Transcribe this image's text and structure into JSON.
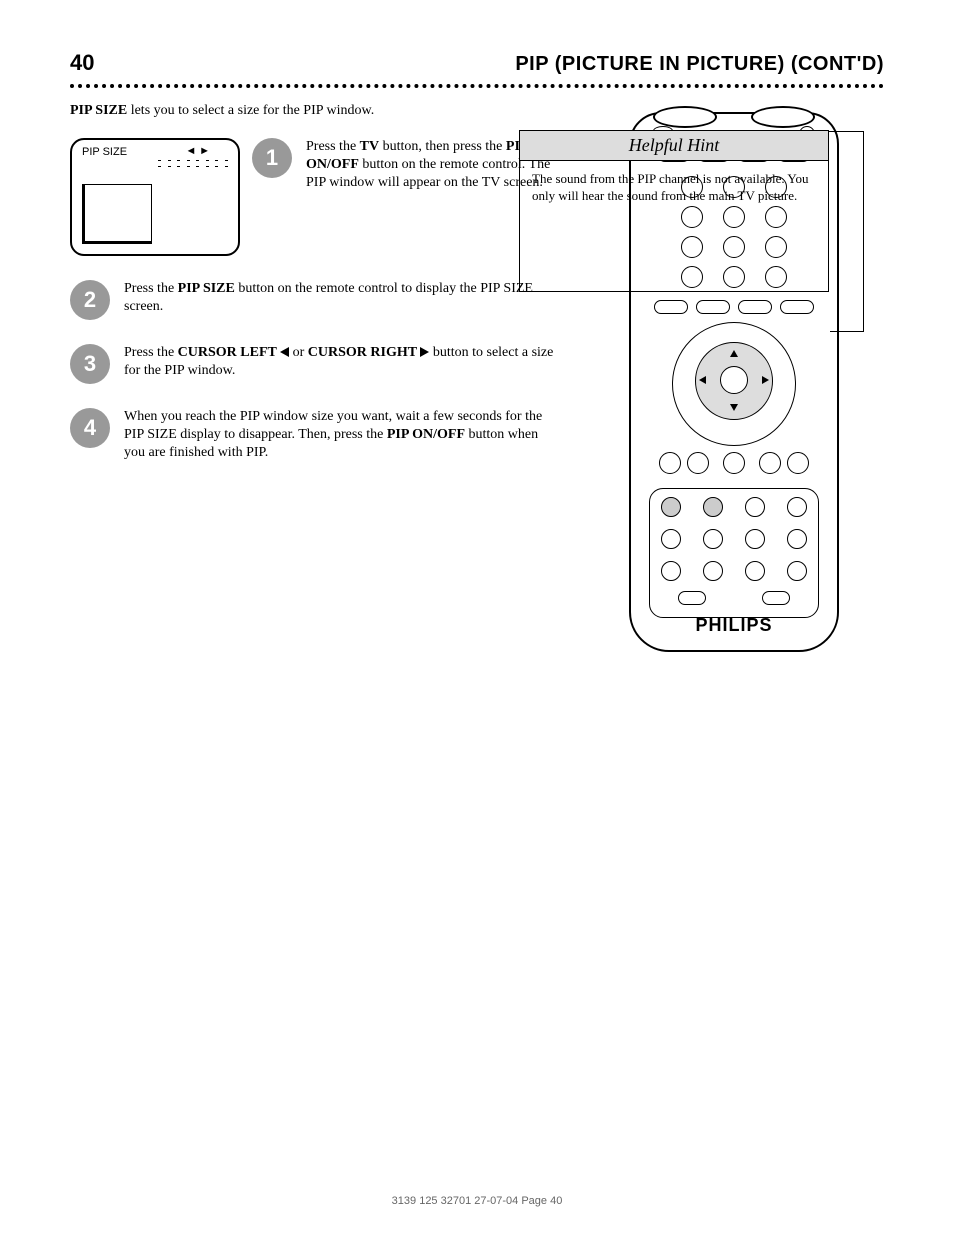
{
  "page_number": "40",
  "page_title": "PIP (PICTURE IN PICTURE) (CONT'D)",
  "intro_html": "<b>PIP SIZE</b> lets you to select a size for the PIP window.",
  "steps": [
    {
      "num": "1",
      "html": "Press the <b>TV</b> button, then press the <b>PIP ON/OFF</b> button on the remote control. The PIP window will appear on the TV screen."
    },
    {
      "num": "2",
      "html": "Press the <b>PIP SIZE</b> button on the remote control to display the PIP SIZE screen."
    },
    {
      "num": "3",
      "html": "Press the <b>CURSOR LEFT <span class=\"inline-triangle tri-left\"></span></b> or <b>CURSOR RIGHT <span class=\"inline-triangle tri-right\"></span></b> button to select a size for the PIP window."
    },
    {
      "num": "4",
      "html": "When you reach the PIP window size you want, wait a few seconds for the PIP SIZE display to disappear. Then, press the <b>PIP ON/OFF</b> button when you are finished with PIP."
    }
  ],
  "pip_diagram": {
    "label": "PIP SIZE",
    "arrows_symbol": "◄ ►"
  },
  "hint": {
    "title": "Helpful Hint",
    "body": "The sound from the PIP channel is not available. You only will hear the sound from the main TV picture."
  },
  "brand": "PHILIPS",
  "footer": "3139 125 32701  27-07-04  Page 40"
}
